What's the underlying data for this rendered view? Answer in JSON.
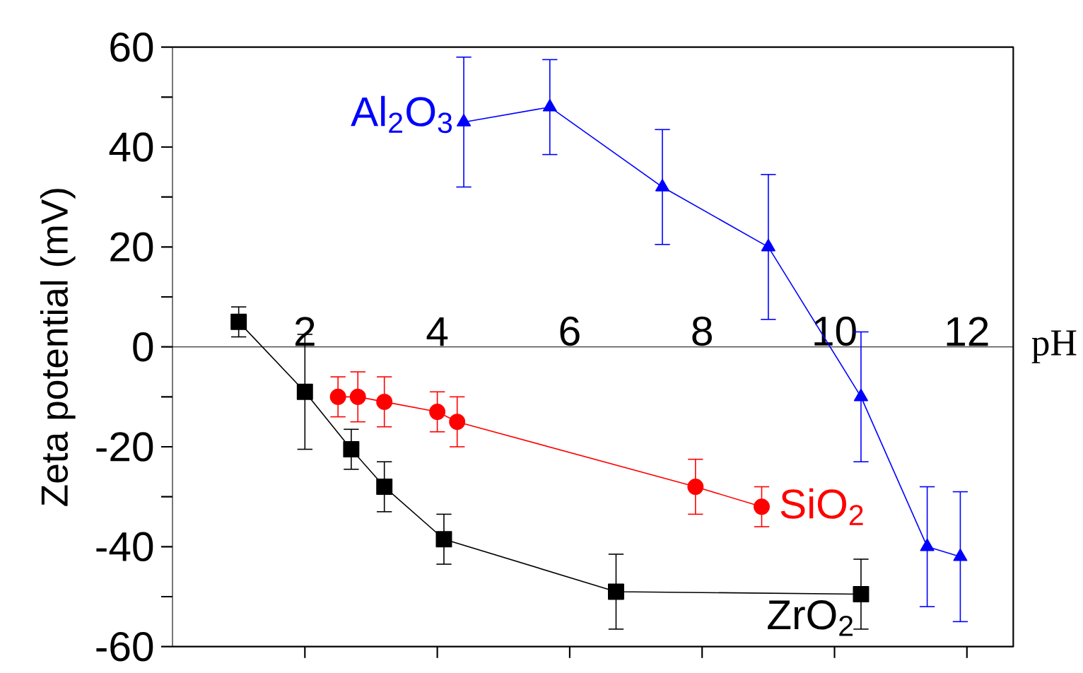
{
  "chart_data": {
    "type": "line",
    "xlabel": "pH",
    "ylabel": "Zeta potential (mV)",
    "xlim": [
      0,
      12.7
    ],
    "xticks": [
      2,
      4,
      6,
      8,
      10,
      12
    ],
    "ylim": [
      -60,
      60
    ],
    "yticks": [
      -60,
      {
        "value": -50,
        "label": null
      },
      -40,
      {
        "value": -30,
        "label": null
      },
      -20,
      {
        "value": -10,
        "label": null
      },
      0,
      {
        "value": 10,
        "label": null
      },
      20,
      {
        "value": 30,
        "label": null
      },
      40,
      {
        "value": 50,
        "label": null
      },
      60
    ],
    "series": [
      {
        "name": "ZrO$_{2}$",
        "color": "#000000",
        "marker": "square",
        "x": [
          1.0,
          2.0,
          2.7,
          3.2,
          4.1,
          6.7,
          10.4
        ],
        "values": [
          5,
          -9,
          -20.5,
          -28,
          -38.5,
          -49,
          -49.5
        ],
        "errors": [
          3,
          11.5,
          4,
          5,
          5,
          7.5,
          7
        ]
      },
      {
        "name": "SiO$_{2}$",
        "color": "#ff0000",
        "marker": "circle",
        "x": [
          2.5,
          2.8,
          3.2,
          4.0,
          4.3,
          7.9,
          8.9
        ],
        "values": [
          -10,
          -10,
          -11,
          -13,
          -15,
          -28,
          -32
        ],
        "errors": [
          4,
          5,
          5,
          4,
          5,
          5.5,
          4
        ]
      },
      {
        "name": "Al$_{2}$O$_{3}$",
        "color": "#0000ff",
        "marker": "triangle",
        "x": [
          4.4,
          5.7,
          7.4,
          9.0,
          10.4,
          11.4,
          11.9
        ],
        "values": [
          45,
          48,
          32,
          20,
          -10,
          -40,
          -42
        ],
        "errors": [
          13,
          9.5,
          11.5,
          14.5,
          13,
          12,
          13
        ]
      }
    ]
  }
}
